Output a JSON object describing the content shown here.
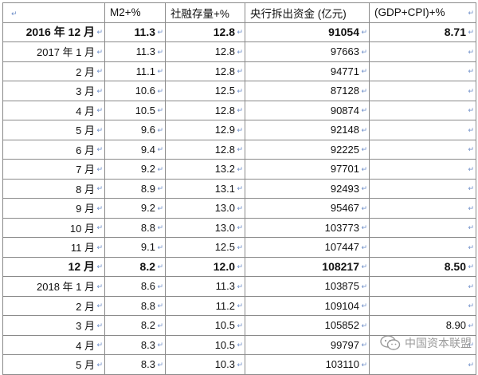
{
  "mark": "↵",
  "headers": [
    "",
    "M2+%",
    "社融存量+%",
    "央行拆出资金 (亿元)",
    "(GDP+CPI)+%"
  ],
  "rows": [
    {
      "label": "2016 年 12 月",
      "m2": "11.3",
      "social": "12.8",
      "funds": "91054",
      "gdp": "8.71",
      "bold": true
    },
    {
      "label": "2017 年 1 月",
      "m2": "11.3",
      "social": "12.8",
      "funds": "97663",
      "gdp": ""
    },
    {
      "label": "2 月",
      "m2": "11.1",
      "social": "12.8",
      "funds": "94771",
      "gdp": ""
    },
    {
      "label": "3 月",
      "m2": "10.6",
      "social": "12.5",
      "funds": "87128",
      "gdp": ""
    },
    {
      "label": "4 月",
      "m2": "10.5",
      "social": "12.8",
      "funds": "90874",
      "gdp": ""
    },
    {
      "label": "5 月",
      "m2": "9.6",
      "social": "12.9",
      "funds": "92148",
      "gdp": ""
    },
    {
      "label": "6 月",
      "m2": "9.4",
      "social": "12.8",
      "funds": "92225",
      "gdp": ""
    },
    {
      "label": "7 月",
      "m2": "9.2",
      "social": "13.2",
      "funds": "97701",
      "gdp": ""
    },
    {
      "label": "8 月",
      "m2": "8.9",
      "social": "13.1",
      "funds": "92493",
      "gdp": ""
    },
    {
      "label": "9 月",
      "m2": "9.2",
      "social": "13.0",
      "funds": "95467",
      "gdp": ""
    },
    {
      "label": "10 月",
      "m2": "8.8",
      "social": "13.0",
      "funds": "103773",
      "gdp": ""
    },
    {
      "label": "11 月",
      "m2": "9.1",
      "social": "12.5",
      "funds": "107447",
      "gdp": ""
    },
    {
      "label": "12 月",
      "m2": "8.2",
      "social": "12.0",
      "funds": "108217",
      "gdp": "8.50",
      "bold": true
    },
    {
      "label": "2018 年 1 月",
      "m2": "8.6",
      "social": "11.3",
      "funds": "103875",
      "gdp": ""
    },
    {
      "label": "2 月",
      "m2": "8.8",
      "social": "11.2",
      "funds": "109104",
      "gdp": ""
    },
    {
      "label": "3 月",
      "m2": "8.2",
      "social": "10.5",
      "funds": "105852",
      "gdp": "8.90"
    },
    {
      "label": "4 月",
      "m2": "8.3",
      "social": "10.5",
      "funds": "99797",
      "gdp": ""
    },
    {
      "label": "5 月",
      "m2": "8.3",
      "social": "10.3",
      "funds": "103110",
      "gdp": ""
    }
  ],
  "watermark": {
    "text": "中国资本联盟",
    "icon": "wechat-icon"
  }
}
